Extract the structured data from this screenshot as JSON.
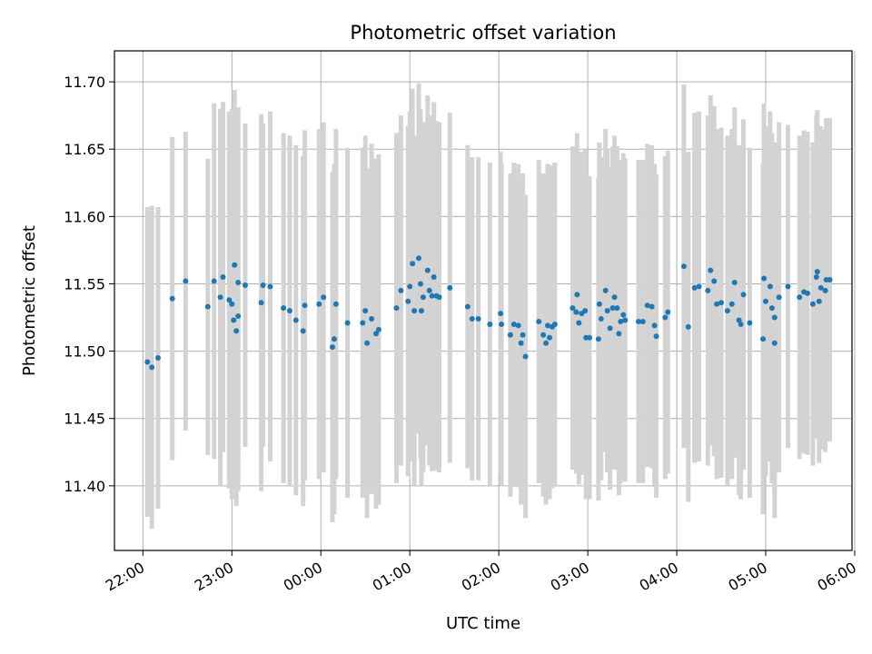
{
  "chart_data": {
    "type": "scatter",
    "title": "Photometric offset variation",
    "xlabel": "UTC time",
    "ylabel": "Photometric offset",
    "x_unit": "hours since 22:00 UTC",
    "xlim": [
      -0.32,
      7.97
    ],
    "ylim": [
      11.352,
      11.723
    ],
    "grid": true,
    "x_ticks": [
      0,
      1,
      2,
      3,
      4,
      5,
      6,
      7,
      8
    ],
    "x_tick_labels": [
      "22:00",
      "23:00",
      "00:00",
      "01:00",
      "02:00",
      "03:00",
      "04:00",
      "05:00",
      "06:00"
    ],
    "y_ticks": [
      11.4,
      11.45,
      11.5,
      11.55,
      11.6,
      11.65,
      11.7
    ],
    "y_tick_labels": [
      "11.40",
      "11.45",
      "11.50",
      "11.55",
      "11.60",
      "11.65",
      "11.70"
    ],
    "colors": {
      "points": "#1f77b4",
      "errorbars": "#d3d3d3",
      "grid": "#b0b0b0"
    },
    "series": [
      {
        "points": [
          [
            0.05,
            11.492,
            0.115
          ],
          [
            0.1,
            11.488,
            0.12
          ],
          [
            0.17,
            11.495,
            0.112
          ],
          [
            0.33,
            11.539,
            0.12
          ],
          [
            0.48,
            11.552,
            0.111
          ],
          [
            0.73,
            11.533,
            0.11
          ],
          [
            0.8,
            11.552,
            0.132
          ],
          [
            0.87,
            11.54,
            0.14
          ],
          [
            0.9,
            11.555,
            0.13
          ],
          [
            0.97,
            11.538,
            0.14
          ],
          [
            1.0,
            11.535,
            0.145
          ],
          [
            1.02,
            11.523,
            0.13
          ],
          [
            1.03,
            11.564,
            0.13
          ],
          [
            1.05,
            11.515,
            0.13
          ],
          [
            1.07,
            11.526,
            0.13
          ],
          [
            1.07,
            11.551,
            0.13
          ],
          [
            1.15,
            11.549,
            0.12
          ],
          [
            1.33,
            11.536,
            0.14
          ],
          [
            1.35,
            11.549,
            0.12
          ],
          [
            1.43,
            11.548,
            0.13
          ],
          [
            1.58,
            11.532,
            0.13
          ],
          [
            1.65,
            11.53,
            0.13
          ],
          [
            1.72,
            11.523,
            0.13
          ],
          [
            1.8,
            11.515,
            0.13
          ],
          [
            1.82,
            11.534,
            0.13
          ],
          [
            1.98,
            11.535,
            0.13
          ],
          [
            2.03,
            11.54,
            0.13
          ],
          [
            2.13,
            11.503,
            0.13
          ],
          [
            2.15,
            11.509,
            0.13
          ],
          [
            2.17,
            11.535,
            0.13
          ],
          [
            2.3,
            11.521,
            0.13
          ],
          [
            2.47,
            11.521,
            0.13
          ],
          [
            2.5,
            11.53,
            0.13
          ],
          [
            2.52,
            11.506,
            0.13
          ],
          [
            2.57,
            11.524,
            0.13
          ],
          [
            2.62,
            11.513,
            0.13
          ],
          [
            2.65,
            11.516,
            0.13
          ],
          [
            2.85,
            11.532,
            0.13
          ],
          [
            2.9,
            11.545,
            0.13
          ],
          [
            2.98,
            11.537,
            0.13
          ],
          [
            3.0,
            11.548,
            0.13
          ],
          [
            3.03,
            11.565,
            0.13
          ],
          [
            3.05,
            11.53,
            0.13
          ],
          [
            3.1,
            11.569,
            0.13
          ],
          [
            3.12,
            11.55,
            0.13
          ],
          [
            3.13,
            11.53,
            0.13
          ],
          [
            3.15,
            11.54,
            0.13
          ],
          [
            3.2,
            11.56,
            0.13
          ],
          [
            3.22,
            11.545,
            0.13
          ],
          [
            3.25,
            11.541,
            0.13
          ],
          [
            3.27,
            11.555,
            0.13
          ],
          [
            3.3,
            11.541,
            0.13
          ],
          [
            3.33,
            11.54,
            0.13
          ],
          [
            3.45,
            11.547,
            0.13
          ],
          [
            3.65,
            11.533,
            0.12
          ],
          [
            3.7,
            11.524,
            0.12
          ],
          [
            3.77,
            11.524,
            0.12
          ],
          [
            3.9,
            11.52,
            0.12
          ],
          [
            4.02,
            11.528,
            0.12
          ],
          [
            4.03,
            11.52,
            0.12
          ],
          [
            4.13,
            11.512,
            0.12
          ],
          [
            4.17,
            11.52,
            0.12
          ],
          [
            4.22,
            11.519,
            0.12
          ],
          [
            4.25,
            11.506,
            0.12
          ],
          [
            4.27,
            11.512,
            0.12
          ],
          [
            4.3,
            11.496,
            0.12
          ],
          [
            4.45,
            11.522,
            0.12
          ],
          [
            4.5,
            11.512,
            0.12
          ],
          [
            4.53,
            11.506,
            0.12
          ],
          [
            4.55,
            11.519,
            0.12
          ],
          [
            4.57,
            11.51,
            0.12
          ],
          [
            4.6,
            11.518,
            0.12
          ],
          [
            4.63,
            11.52,
            0.12
          ],
          [
            4.83,
            11.532,
            0.12
          ],
          [
            4.87,
            11.529,
            0.12
          ],
          [
            4.88,
            11.542,
            0.12
          ],
          [
            4.9,
            11.521,
            0.12
          ],
          [
            4.93,
            11.528,
            0.12
          ],
          [
            4.97,
            11.53,
            0.12
          ],
          [
            4.98,
            11.51,
            0.12
          ],
          [
            5.02,
            11.51,
            0.12
          ],
          [
            5.12,
            11.509,
            0.12
          ],
          [
            5.13,
            11.535,
            0.12
          ],
          [
            5.15,
            11.524,
            0.12
          ],
          [
            5.2,
            11.545,
            0.12
          ],
          [
            5.22,
            11.53,
            0.12
          ],
          [
            5.25,
            11.517,
            0.12
          ],
          [
            5.28,
            11.532,
            0.12
          ],
          [
            5.3,
            11.54,
            0.12
          ],
          [
            5.33,
            11.532,
            0.12
          ],
          [
            5.35,
            11.513,
            0.12
          ],
          [
            5.37,
            11.522,
            0.12
          ],
          [
            5.4,
            11.527,
            0.12
          ],
          [
            5.42,
            11.523,
            0.12
          ],
          [
            5.57,
            11.522,
            0.12
          ],
          [
            5.62,
            11.522,
            0.12
          ],
          [
            5.67,
            11.534,
            0.12
          ],
          [
            5.72,
            11.533,
            0.12
          ],
          [
            5.75,
            11.519,
            0.12
          ],
          [
            5.77,
            11.511,
            0.12
          ],
          [
            5.87,
            11.525,
            0.12
          ],
          [
            5.9,
            11.529,
            0.12
          ],
          [
            6.08,
            11.563,
            0.135
          ],
          [
            6.13,
            11.518,
            0.13
          ],
          [
            6.2,
            11.547,
            0.13
          ],
          [
            6.25,
            11.548,
            0.13
          ],
          [
            6.35,
            11.545,
            0.13
          ],
          [
            6.38,
            11.56,
            0.13
          ],
          [
            6.42,
            11.552,
            0.13
          ],
          [
            6.45,
            11.535,
            0.13
          ],
          [
            6.5,
            11.536,
            0.13
          ],
          [
            6.57,
            11.53,
            0.13
          ],
          [
            6.62,
            11.535,
            0.13
          ],
          [
            6.65,
            11.551,
            0.13
          ],
          [
            6.7,
            11.523,
            0.13
          ],
          [
            6.72,
            11.52,
            0.13
          ],
          [
            6.75,
            11.542,
            0.13
          ],
          [
            6.82,
            11.521,
            0.13
          ],
          [
            6.97,
            11.509,
            0.13
          ],
          [
            6.98,
            11.554,
            0.13
          ],
          [
            7.0,
            11.537,
            0.13
          ],
          [
            7.05,
            11.548,
            0.13
          ],
          [
            7.07,
            11.532,
            0.13
          ],
          [
            7.1,
            11.525,
            0.13
          ],
          [
            7.1,
            11.506,
            0.13
          ],
          [
            7.15,
            11.54,
            0.13
          ],
          [
            7.25,
            11.548,
            0.12
          ],
          [
            7.38,
            11.54,
            0.12
          ],
          [
            7.43,
            11.544,
            0.12
          ],
          [
            7.47,
            11.543,
            0.12
          ],
          [
            7.53,
            11.535,
            0.12
          ],
          [
            7.57,
            11.555,
            0.12
          ],
          [
            7.58,
            11.559,
            0.12
          ],
          [
            7.6,
            11.537,
            0.12
          ],
          [
            7.62,
            11.547,
            0.12
          ],
          [
            7.67,
            11.545,
            0.12
          ],
          [
            7.68,
            11.553,
            0.12
          ],
          [
            7.72,
            11.553,
            0.12
          ]
        ]
      }
    ]
  }
}
